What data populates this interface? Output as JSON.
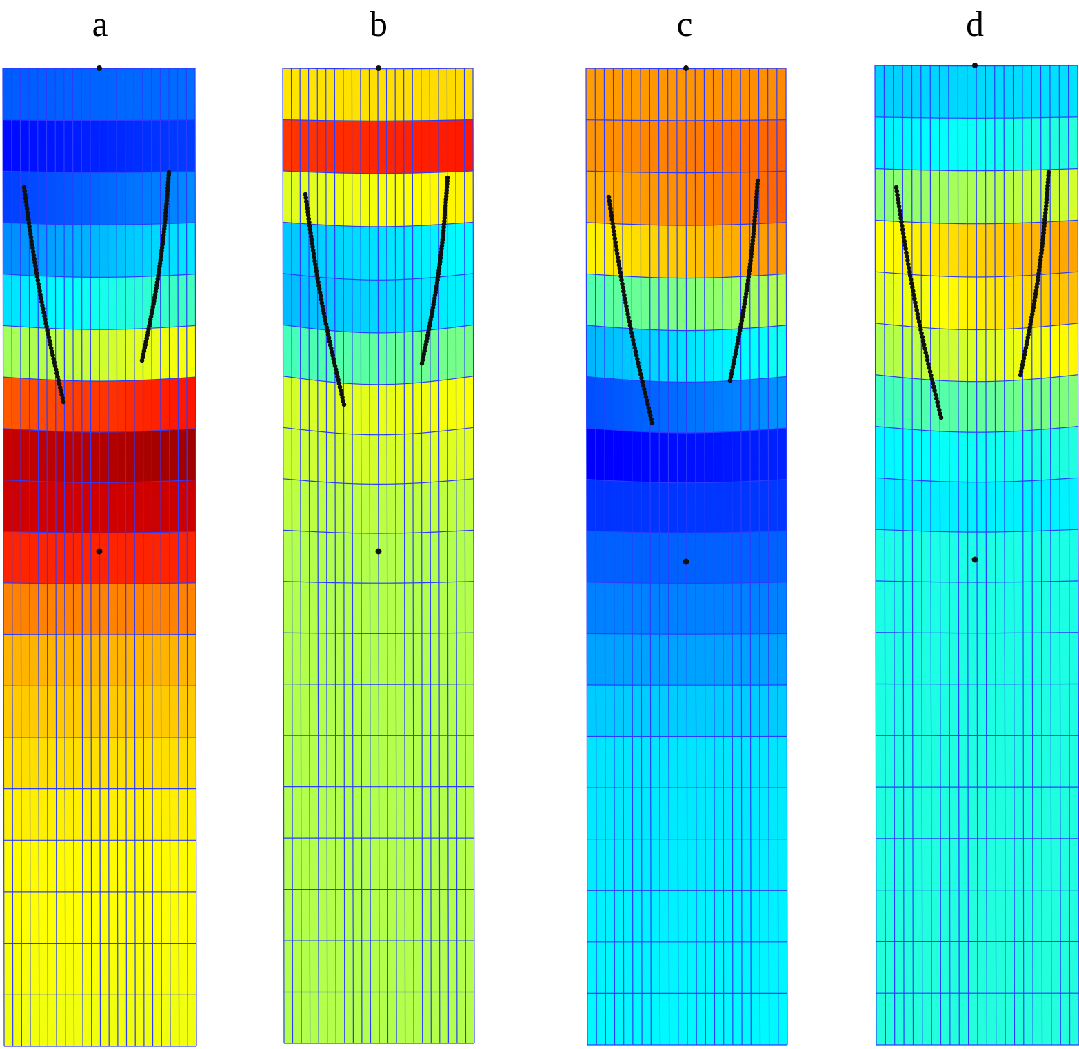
{
  "figure": {
    "panels": [
      {
        "label": "a",
        "profile": [
          [
            0,
            0.25
          ],
          [
            0.05,
            0.2
          ],
          [
            0.1,
            0.13
          ],
          [
            0.15,
            0.28
          ],
          [
            0.2,
            0.32
          ],
          [
            0.25,
            0.42
          ],
          [
            0.3,
            0.62
          ],
          [
            0.35,
            0.86
          ],
          [
            0.4,
            0.96
          ],
          [
            0.45,
            0.92
          ],
          [
            0.5,
            0.84
          ],
          [
            0.55,
            0.75
          ],
          [
            0.6,
            0.7
          ],
          [
            0.65,
            0.68
          ],
          [
            0.7,
            0.66
          ],
          [
            0.8,
            0.63
          ],
          [
            1.0,
            0.61
          ]
        ],
        "lateral": 0.1
      },
      {
        "label": "b",
        "profile": [
          [
            0,
            0.55
          ],
          [
            0.05,
            0.75
          ],
          [
            0.1,
            0.9
          ],
          [
            0.15,
            0.45
          ],
          [
            0.2,
            0.3
          ],
          [
            0.25,
            0.35
          ],
          [
            0.3,
            0.5
          ],
          [
            0.35,
            0.62
          ],
          [
            0.4,
            0.58
          ],
          [
            0.45,
            0.56
          ],
          [
            0.5,
            0.55
          ],
          [
            1.0,
            0.55
          ]
        ],
        "lateral": 0.06
      },
      {
        "label": "c",
        "profile": [
          [
            0,
            0.65
          ],
          [
            0.05,
            0.8
          ],
          [
            0.1,
            0.72
          ],
          [
            0.15,
            0.75
          ],
          [
            0.2,
            0.65
          ],
          [
            0.25,
            0.45
          ],
          [
            0.3,
            0.32
          ],
          [
            0.35,
            0.22
          ],
          [
            0.4,
            0.13
          ],
          [
            0.45,
            0.18
          ],
          [
            0.5,
            0.22
          ],
          [
            0.55,
            0.25
          ],
          [
            0.6,
            0.28
          ],
          [
            0.65,
            0.32
          ],
          [
            0.7,
            0.35
          ],
          [
            1.0,
            0.37
          ]
        ],
        "lateral": 0.1
      },
      {
        "label": "d",
        "profile": [
          [
            0,
            0.38
          ],
          [
            0.05,
            0.3
          ],
          [
            0.1,
            0.45
          ],
          [
            0.15,
            0.6
          ],
          [
            0.2,
            0.7
          ],
          [
            0.25,
            0.62
          ],
          [
            0.3,
            0.58
          ],
          [
            0.35,
            0.45
          ],
          [
            0.4,
            0.38
          ],
          [
            0.45,
            0.36
          ],
          [
            0.5,
            0.4
          ],
          [
            1.0,
            0.41
          ]
        ],
        "lateral": 0.1
      }
    ],
    "mesh": {
      "columns": 22,
      "rows": 19
    },
    "colors": {
      "mesh_line": "#2b3cff",
      "markers": "#111111"
    },
    "colormap": "jet"
  }
}
